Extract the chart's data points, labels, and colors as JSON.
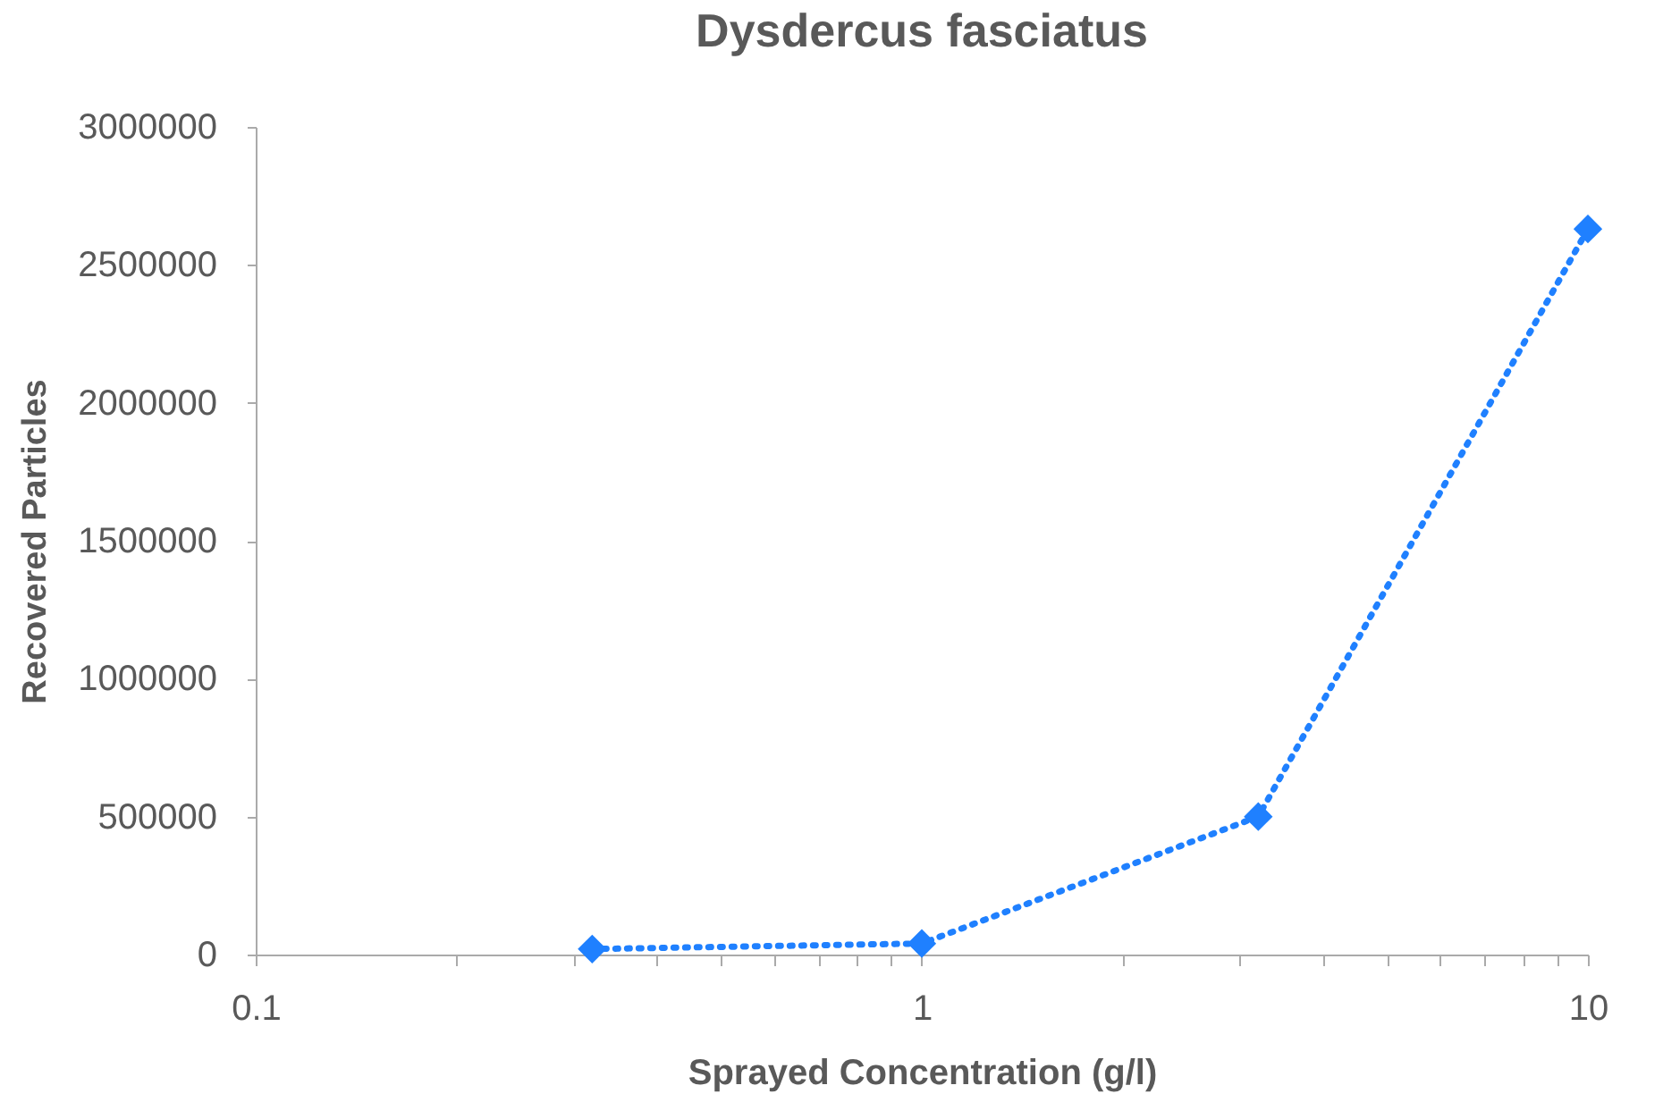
{
  "chart_data": {
    "type": "line",
    "title": "Dysdercus fasciatus",
    "xlabel": "Sprayed Concentration (g/l)",
    "ylabel": "Recovered Particles",
    "x": [
      0.32,
      1,
      3.2,
      10
    ],
    "series": [
      {
        "color": "#1f80ff",
        "values": [
          20000,
          40000,
          500000,
          2630000
        ]
      }
    ],
    "log": "x",
    "xlim": [
      0.1,
      10
    ],
    "xticks": [
      0.1,
      {
        "value": 0.2,
        "label": null
      },
      {
        "value": 0.3,
        "label": null
      },
      {
        "value": 0.4,
        "label": null
      },
      {
        "value": 0.5,
        "label": null
      },
      {
        "value": 0.6,
        "label": null
      },
      {
        "value": 0.7,
        "label": null
      },
      {
        "value": 0.8,
        "label": null
      },
      {
        "value": 0.9,
        "label": null
      },
      1,
      {
        "value": 2,
        "label": null
      },
      {
        "value": 3,
        "label": null
      },
      {
        "value": 4,
        "label": null
      },
      {
        "value": 5,
        "label": null
      },
      {
        "value": 6,
        "label": null
      },
      {
        "value": 7,
        "label": null
      },
      {
        "value": 8,
        "label": null
      },
      {
        "value": 9,
        "label": null
      },
      10
    ],
    "ylim": [
      0,
      3000000
    ],
    "yticks": [
      0,
      500000,
      1000000,
      1500000,
      2000000,
      2500000,
      3000000
    ],
    "grid": false,
    "legend": false,
    "marker": "diamond",
    "line_style": "dotted"
  }
}
